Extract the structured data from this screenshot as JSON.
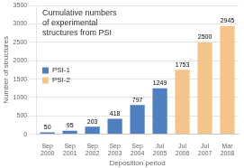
{
  "chart_data": {
    "type": "bar",
    "title": "Cumulative numbers\nof experimental\nstructures from PSI",
    "xlabel": "Deposition period",
    "ylabel": "Number of structures",
    "categories": [
      "Sep\n2000",
      "Sep\n2001",
      "Sep\n2002",
      "Sep\n2003",
      "Sep\n2004",
      "Jul\n2005",
      "Jul\n2006",
      "Jul\n2007",
      "Mar\n2008"
    ],
    "series": [
      {
        "name": "PSI-1",
        "color": "#4f7fbf",
        "values": [
          50,
          95,
          203,
          418,
          797,
          1249,
          null,
          null,
          null
        ]
      },
      {
        "name": "PSI-2",
        "color": "#f5c48a",
        "values": [
          null,
          null,
          null,
          null,
          null,
          null,
          1753,
          2500,
          2945
        ]
      }
    ],
    "ylim": [
      0,
      3500
    ],
    "yticks": [
      0,
      500,
      1000,
      1500,
      2000,
      2500,
      3000,
      3500
    ],
    "grid": true,
    "legend": "center left",
    "data_labels": true
  }
}
